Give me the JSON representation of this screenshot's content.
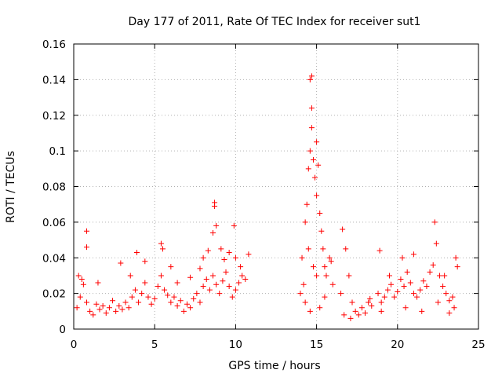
{
  "chart_data": {
    "type": "scatter",
    "title": "Day 177 of 2011, Rate Of TEC Index for receiver sut1",
    "xlabel": "GPS time / hours",
    "ylabel": "ROTI / TECUs",
    "xlim": [
      0,
      25
    ],
    "ylim": [
      0,
      0.16
    ],
    "x_ticks": [
      0,
      5,
      10,
      15,
      20,
      25
    ],
    "x_tick_labels": [
      "0",
      "5",
      "10",
      "15",
      "20",
      "25"
    ],
    "y_ticks": [
      0,
      0.02,
      0.04,
      0.06,
      0.08,
      0.1,
      0.12,
      0.14,
      0.16
    ],
    "y_tick_labels": [
      "0",
      "0.02",
      "0.04",
      "0.06",
      "0.08",
      "0.1",
      "0.12",
      "0.14",
      "0.16"
    ],
    "grid": true,
    "marker": "plus",
    "color": "#ff0000",
    "series": [
      {
        "values": [
          [
            0.2,
            0.012
          ],
          [
            0.4,
            0.018
          ],
          [
            0.6,
            0.025
          ],
          [
            0.8,
            0.015
          ],
          [
            1.0,
            0.01
          ],
          [
            1.2,
            0.008
          ],
          [
            1.4,
            0.014
          ],
          [
            1.6,
            0.011
          ],
          [
            1.8,
            0.013
          ],
          [
            2.0,
            0.009
          ],
          [
            2.2,
            0.012
          ],
          [
            2.4,
            0.016
          ],
          [
            2.6,
            0.01
          ],
          [
            2.8,
            0.013
          ],
          [
            3.0,
            0.011
          ],
          [
            3.2,
            0.015
          ],
          [
            3.4,
            0.012
          ],
          [
            3.6,
            0.018
          ],
          [
            3.8,
            0.022
          ],
          [
            4.0,
            0.015
          ],
          [
            4.2,
            0.02
          ],
          [
            4.4,
            0.026
          ],
          [
            4.6,
            0.018
          ],
          [
            4.8,
            0.014
          ],
          [
            5.0,
            0.017
          ],
          [
            5.2,
            0.024
          ],
          [
            5.4,
            0.03
          ],
          [
            5.6,
            0.022
          ],
          [
            5.8,
            0.019
          ],
          [
            6.0,
            0.015
          ],
          [
            6.2,
            0.018
          ],
          [
            6.4,
            0.013
          ],
          [
            6.6,
            0.016
          ],
          [
            6.8,
            0.01
          ],
          [
            7.0,
            0.014
          ],
          [
            7.2,
            0.012
          ],
          [
            7.4,
            0.017
          ],
          [
            7.6,
            0.02
          ],
          [
            7.8,
            0.015
          ],
          [
            8.0,
            0.024
          ],
          [
            8.2,
            0.028
          ],
          [
            8.4,
            0.022
          ],
          [
            8.6,
            0.03
          ],
          [
            8.8,
            0.025
          ],
          [
            9.0,
            0.02
          ],
          [
            9.2,
            0.027
          ],
          [
            9.4,
            0.032
          ],
          [
            9.6,
            0.024
          ],
          [
            9.8,
            0.018
          ],
          [
            10.0,
            0.022
          ],
          [
            10.2,
            0.026
          ],
          [
            10.4,
            0.03
          ],
          [
            10.6,
            0.028
          ],
          [
            0.3,
            0.03
          ],
          [
            0.5,
            0.028
          ],
          [
            0.8,
            0.055
          ],
          [
            0.8,
            0.046
          ],
          [
            1.5,
            0.026
          ],
          [
            2.9,
            0.037
          ],
          [
            3.5,
            0.03
          ],
          [
            3.9,
            0.043
          ],
          [
            4.4,
            0.038
          ],
          [
            5.4,
            0.048
          ],
          [
            5.5,
            0.045
          ],
          [
            6.0,
            0.035
          ],
          [
            6.4,
            0.026
          ],
          [
            7.2,
            0.029
          ],
          [
            7.8,
            0.034
          ],
          [
            8.0,
            0.04
          ],
          [
            8.3,
            0.044
          ],
          [
            8.6,
            0.054
          ],
          [
            8.7,
            0.071
          ],
          [
            8.7,
            0.069
          ],
          [
            8.8,
            0.058
          ],
          [
            9.1,
            0.045
          ],
          [
            9.3,
            0.039
          ],
          [
            9.6,
            0.043
          ],
          [
            9.9,
            0.058
          ],
          [
            10.0,
            0.04
          ],
          [
            10.3,
            0.035
          ],
          [
            10.8,
            0.042
          ],
          [
            14.0,
            0.02
          ],
          [
            14.1,
            0.04
          ],
          [
            14.2,
            0.025
          ],
          [
            14.3,
            0.06
          ],
          [
            14.4,
            0.07
          ],
          [
            14.5,
            0.09
          ],
          [
            14.6,
            0.1
          ],
          [
            14.6,
            0.14
          ],
          [
            14.7,
            0.142
          ],
          [
            14.7,
            0.124
          ],
          [
            14.7,
            0.113
          ],
          [
            14.8,
            0.095
          ],
          [
            14.9,
            0.085
          ],
          [
            15.0,
            0.105
          ],
          [
            15.0,
            0.075
          ],
          [
            15.1,
            0.092
          ],
          [
            15.2,
            0.065
          ],
          [
            15.3,
            0.055
          ],
          [
            15.4,
            0.045
          ],
          [
            15.5,
            0.035
          ],
          [
            15.6,
            0.03
          ],
          [
            15.8,
            0.04
          ],
          [
            15.9,
            0.038
          ],
          [
            16.0,
            0.025
          ],
          [
            14.5,
            0.045
          ],
          [
            14.8,
            0.035
          ],
          [
            15.0,
            0.03
          ],
          [
            14.3,
            0.015
          ],
          [
            14.6,
            0.01
          ],
          [
            15.2,
            0.012
          ],
          [
            15.5,
            0.018
          ],
          [
            16.5,
            0.02
          ],
          [
            16.6,
            0.056
          ],
          [
            16.8,
            0.045
          ],
          [
            17.0,
            0.03
          ],
          [
            17.2,
            0.015
          ],
          [
            17.4,
            0.01
          ],
          [
            17.6,
            0.008
          ],
          [
            17.8,
            0.012
          ],
          [
            18.0,
            0.009
          ],
          [
            18.2,
            0.015
          ],
          [
            18.4,
            0.013
          ],
          [
            16.7,
            0.008
          ],
          [
            17.1,
            0.006
          ],
          [
            18.3,
            0.017
          ],
          [
            18.8,
            0.02
          ],
          [
            18.9,
            0.044
          ],
          [
            19.0,
            0.015
          ],
          [
            19.2,
            0.018
          ],
          [
            19.4,
            0.022
          ],
          [
            19.6,
            0.025
          ],
          [
            19.8,
            0.018
          ],
          [
            20.0,
            0.021
          ],
          [
            20.2,
            0.028
          ],
          [
            20.4,
            0.024
          ],
          [
            20.6,
            0.032
          ],
          [
            20.8,
            0.026
          ],
          [
            21.0,
            0.02
          ],
          [
            21.2,
            0.018
          ],
          [
            21.4,
            0.022
          ],
          [
            21.6,
            0.027
          ],
          [
            21.8,
            0.024
          ],
          [
            22.0,
            0.032
          ],
          [
            22.2,
            0.036
          ],
          [
            22.3,
            0.06
          ],
          [
            22.4,
            0.048
          ],
          [
            22.6,
            0.03
          ],
          [
            22.8,
            0.024
          ],
          [
            23.0,
            0.02
          ],
          [
            23.2,
            0.016
          ],
          [
            23.4,
            0.018
          ],
          [
            23.6,
            0.04
          ],
          [
            23.7,
            0.035
          ],
          [
            19.5,
            0.03
          ],
          [
            20.3,
            0.04
          ],
          [
            21.0,
            0.042
          ],
          [
            22.9,
            0.03
          ],
          [
            23.5,
            0.012
          ],
          [
            19.0,
            0.01
          ],
          [
            20.5,
            0.012
          ],
          [
            21.5,
            0.01
          ],
          [
            22.5,
            0.015
          ],
          [
            23.2,
            0.009
          ]
        ]
      }
    ]
  }
}
